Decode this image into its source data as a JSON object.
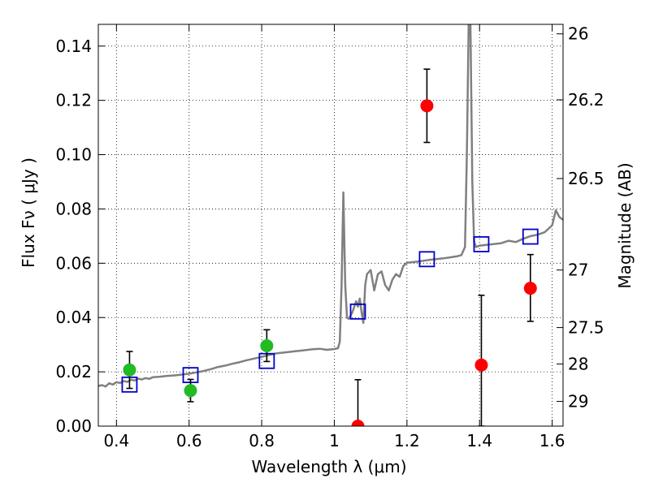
{
  "chart_data": {
    "type": "scatter",
    "xlabel": "Wavelength  λ (μm)",
    "ylabel_left": "Flux  Fν  ( μJy )",
    "ylabel_right": "Magnitude (AB)",
    "xlim": [
      0.35,
      1.63
    ],
    "ylim": [
      0.0,
      0.148
    ],
    "grid": true,
    "x_ticks": [
      0.4,
      0.6,
      0.8,
      1.0,
      1.2,
      1.4,
      1.6
    ],
    "x_tick_labels": [
      "0.4",
      "0.6",
      "0.8",
      "1",
      "1.2",
      "1.4",
      "1.6"
    ],
    "y_ticks": [
      0.0,
      0.02,
      0.04,
      0.06,
      0.08,
      0.1,
      0.12,
      0.14
    ],
    "y_tick_labels": [
      "0.00",
      "0.02",
      "0.04",
      "0.06",
      "0.08",
      "0.10",
      "0.12",
      "0.14"
    ],
    "right_ticks": [
      {
        "label": "26",
        "flux": 0.1445
      },
      {
        "label": "26.2",
        "flux": 0.1202
      },
      {
        "label": "26.5",
        "flux": 0.0912
      },
      {
        "label": "27",
        "flux": 0.0575
      },
      {
        "label": "27.5",
        "flux": 0.0363
      },
      {
        "label": "28",
        "flux": 0.0229
      },
      {
        "label": "29",
        "flux": 0.0091
      }
    ],
    "series": [
      {
        "kind": "line",
        "color": "#808080",
        "points": [
          [
            0.35,
            0.0148
          ],
          [
            0.36,
            0.0151
          ],
          [
            0.37,
            0.0146
          ],
          [
            0.38,
            0.0158
          ],
          [
            0.39,
            0.0153
          ],
          [
            0.4,
            0.0162
          ],
          [
            0.41,
            0.0159
          ],
          [
            0.42,
            0.0166
          ],
          [
            0.43,
            0.0163
          ],
          [
            0.44,
            0.0171
          ],
          [
            0.45,
            0.0168
          ],
          [
            0.46,
            0.0175
          ],
          [
            0.47,
            0.0172
          ],
          [
            0.48,
            0.0177
          ],
          [
            0.49,
            0.0174
          ],
          [
            0.5,
            0.018
          ],
          [
            0.52,
            0.0182
          ],
          [
            0.54,
            0.0185
          ],
          [
            0.56,
            0.0187
          ],
          [
            0.58,
            0.019
          ],
          [
            0.6,
            0.0193
          ],
          [
            0.62,
            0.0198
          ],
          [
            0.64,
            0.0203
          ],
          [
            0.66,
            0.021
          ],
          [
            0.68,
            0.0218
          ],
          [
            0.7,
            0.0223
          ],
          [
            0.72,
            0.023
          ],
          [
            0.74,
            0.0236
          ],
          [
            0.76,
            0.0243
          ],
          [
            0.78,
            0.0249
          ],
          [
            0.8,
            0.0255
          ],
          [
            0.82,
            0.0262
          ],
          [
            0.84,
            0.0268
          ],
          [
            0.86,
            0.0271
          ],
          [
            0.88,
            0.0274
          ],
          [
            0.9,
            0.0277
          ],
          [
            0.92,
            0.028
          ],
          [
            0.94,
            0.0283
          ],
          [
            0.96,
            0.0285
          ],
          [
            0.98,
            0.0281
          ],
          [
            1.0,
            0.0284
          ],
          [
            1.01,
            0.0287
          ],
          [
            1.015,
            0.031
          ],
          [
            1.02,
            0.052
          ],
          [
            1.025,
            0.0861
          ],
          [
            1.03,
            0.052
          ],
          [
            1.035,
            0.04
          ],
          [
            1.04,
            0.0395
          ],
          [
            1.05,
            0.042
          ],
          [
            1.06,
            0.046
          ],
          [
            1.065,
            0.044
          ],
          [
            1.07,
            0.047
          ],
          [
            1.075,
            0.042
          ],
          [
            1.08,
            0.038
          ],
          [
            1.085,
            0.052
          ],
          [
            1.09,
            0.056
          ],
          [
            1.1,
            0.0575
          ],
          [
            1.11,
            0.05
          ],
          [
            1.12,
            0.056
          ],
          [
            1.13,
            0.057
          ],
          [
            1.14,
            0.052
          ],
          [
            1.15,
            0.05
          ],
          [
            1.16,
            0.054
          ],
          [
            1.17,
            0.056
          ],
          [
            1.18,
            0.055
          ],
          [
            1.19,
            0.059
          ],
          [
            1.2,
            0.0602
          ],
          [
            1.22,
            0.0605
          ],
          [
            1.24,
            0.0608
          ],
          [
            1.26,
            0.0612
          ],
          [
            1.28,
            0.0615
          ],
          [
            1.3,
            0.0618
          ],
          [
            1.32,
            0.0622
          ],
          [
            1.34,
            0.0626
          ],
          [
            1.35,
            0.063
          ],
          [
            1.36,
            0.066
          ],
          [
            1.365,
            0.1
          ],
          [
            1.37,
            0.148
          ],
          [
            1.375,
            0.148
          ],
          [
            1.38,
            0.09
          ],
          [
            1.385,
            0.068
          ],
          [
            1.39,
            0.066
          ],
          [
            1.4,
            0.0665
          ],
          [
            1.42,
            0.0668
          ],
          [
            1.44,
            0.0671
          ],
          [
            1.46,
            0.0674
          ],
          [
            1.48,
            0.0683
          ],
          [
            1.5,
            0.0678
          ],
          [
            1.52,
            0.069
          ],
          [
            1.54,
            0.07
          ],
          [
            1.56,
            0.0705
          ],
          [
            1.58,
            0.0715
          ],
          [
            1.6,
            0.074
          ],
          [
            1.61,
            0.0795
          ],
          [
            1.62,
            0.077
          ],
          [
            1.63,
            0.076
          ]
        ]
      },
      {
        "kind": "squares",
        "color": "#0000cc",
        "points": [
          [
            0.436,
            0.0153
          ],
          [
            0.604,
            0.0188
          ],
          [
            0.814,
            0.024
          ],
          [
            1.065,
            0.0422
          ],
          [
            1.255,
            0.0615
          ],
          [
            1.405,
            0.067
          ],
          [
            1.54,
            0.0698
          ]
        ]
      },
      {
        "kind": "errorbar-circles",
        "color": "#22bb22",
        "points": [
          {
            "x": 0.436,
            "y": 0.0207,
            "lo": 0.0139,
            "hi": 0.0275
          },
          {
            "x": 0.604,
            "y": 0.0131,
            "lo": 0.009,
            "hi": 0.0172
          },
          {
            "x": 0.814,
            "y": 0.0296,
            "lo": 0.0238,
            "hi": 0.0355
          }
        ]
      },
      {
        "kind": "errorbar-circles",
        "color": "#ff0000",
        "points": [
          {
            "x": 1.065,
            "y": 0.0,
            "lo": 0.0,
            "hi": 0.0171
          },
          {
            "x": 1.255,
            "y": 0.118,
            "lo": 0.1045,
            "hi": 0.1315
          },
          {
            "x": 1.405,
            "y": 0.0225,
            "lo": 0.0,
            "hi": 0.0482
          },
          {
            "x": 1.54,
            "y": 0.0508,
            "lo": 0.0386,
            "hi": 0.0632
          }
        ]
      }
    ]
  }
}
